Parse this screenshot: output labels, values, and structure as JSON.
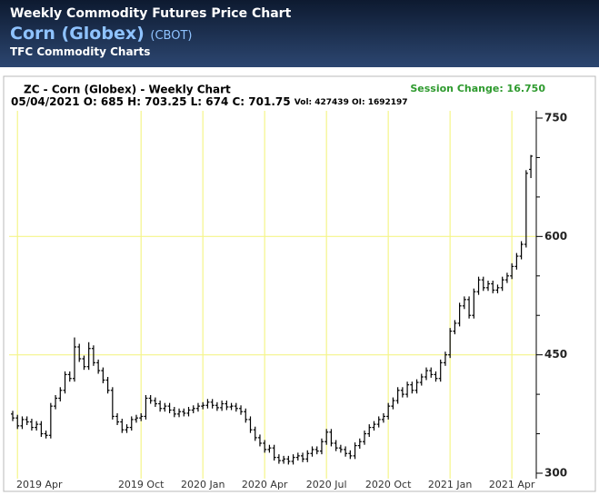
{
  "header": {
    "title": "Weekly Commodity Futures Price Chart",
    "commodity": "Corn (Globex)",
    "exchange": "(CBOT)",
    "source": "TFC Commodity Charts"
  },
  "chart_data": {
    "type": "ohlc",
    "title": "ZC - Corn (Globex) - Weekly Chart",
    "quote_line": "05/04/2021 O: 685 H: 703.25 L: 674 C: 701.75",
    "volume_line": "Vol: 427439 OI: 1692197",
    "session_change": "Session Change: 16.750",
    "color": "#000000",
    "grid_color": "#f5f58a",
    "ylim": [
      300,
      750
    ],
    "yticks": [
      300,
      450,
      600,
      750
    ],
    "yminorticks": [
      350,
      400,
      500,
      550,
      650,
      700
    ],
    "categories": [
      null,
      "2019 Apr",
      null,
      null,
      null,
      null,
      null,
      null,
      null,
      null,
      null,
      null,
      null,
      null,
      null,
      null,
      null,
      null,
      null,
      null,
      null,
      null,
      null,
      null,
      null,
      null,
      null,
      "2019 Oct",
      null,
      null,
      null,
      null,
      null,
      null,
      null,
      null,
      null,
      null,
      null,
      null,
      "2020 Jan",
      null,
      null,
      null,
      null,
      null,
      null,
      null,
      null,
      null,
      null,
      null,
      null,
      "2020 Apr",
      null,
      null,
      null,
      null,
      null,
      null,
      null,
      null,
      null,
      null,
      null,
      null,
      "2020 Jul",
      null,
      null,
      null,
      null,
      null,
      null,
      null,
      null,
      null,
      null,
      null,
      null,
      "2020 Oct",
      null,
      null,
      null,
      null,
      null,
      null,
      null,
      null,
      null,
      null,
      null,
      null,
      "2021 Jan",
      null,
      null,
      null,
      null,
      null,
      null,
      null,
      null,
      null,
      null,
      null,
      null,
      "2021 Apr",
      null,
      null,
      null,
      null
    ],
    "open": [
      375,
      370,
      360,
      368,
      365,
      358,
      362,
      350,
      348,
      385,
      395,
      405,
      425,
      420,
      460,
      445,
      435,
      458,
      440,
      430,
      418,
      405,
      372,
      365,
      355,
      358,
      368,
      370,
      372,
      395,
      392,
      388,
      382,
      385,
      380,
      375,
      378,
      376,
      380,
      382,
      385,
      386,
      390,
      386,
      383,
      388,
      384,
      385,
      382,
      378,
      368,
      355,
      345,
      338,
      330,
      332,
      320,
      316,
      318,
      315,
      320,
      322,
      318,
      325,
      330,
      328,
      340,
      352,
      338,
      332,
      330,
      325,
      322,
      335,
      340,
      350,
      358,
      362,
      368,
      372,
      385,
      392,
      405,
      400,
      412,
      405,
      415,
      422,
      430,
      425,
      420,
      440,
      450,
      480,
      490,
      512,
      520,
      500,
      530,
      545,
      535,
      540,
      532,
      535,
      545,
      550,
      562,
      575,
      590,
      685
    ],
    "high": [
      379,
      374,
      372,
      372,
      369,
      366,
      366,
      354,
      389,
      399,
      409,
      429,
      429,
      472,
      464,
      449,
      466,
      462,
      444,
      434,
      422,
      409,
      376,
      369,
      362,
      372,
      374,
      376,
      399,
      399,
      396,
      392,
      389,
      389,
      384,
      382,
      382,
      384,
      386,
      389,
      390,
      394,
      394,
      390,
      392,
      392,
      389,
      389,
      386,
      382,
      372,
      359,
      349,
      342,
      336,
      336,
      324,
      322,
      322,
      324,
      326,
      326,
      329,
      334,
      334,
      344,
      356,
      356,
      342,
      336,
      334,
      329,
      339,
      344,
      354,
      362,
      366,
      372,
      376,
      389,
      396,
      409,
      409,
      416,
      416,
      419,
      426,
      434,
      434,
      429,
      444,
      454,
      484,
      494,
      516,
      524,
      524,
      534,
      549,
      549,
      544,
      544,
      539,
      549,
      554,
      566,
      579,
      594,
      684,
      703.25
    ],
    "low": [
      366,
      356,
      356,
      361,
      354,
      354,
      346,
      344,
      344,
      381,
      391,
      401,
      416,
      416,
      441,
      431,
      431,
      436,
      426,
      414,
      401,
      368,
      361,
      351,
      351,
      354,
      364,
      366,
      368,
      388,
      384,
      378,
      378,
      376,
      371,
      371,
      372,
      372,
      376,
      378,
      381,
      382,
      382,
      379,
      379,
      380,
      380,
      378,
      374,
      364,
      351,
      341,
      334,
      326,
      326,
      316,
      312,
      312,
      311,
      311,
      316,
      314,
      314,
      321,
      324,
      324,
      336,
      334,
      328,
      326,
      321,
      318,
      318,
      331,
      336,
      346,
      354,
      358,
      364,
      368,
      381,
      388,
      396,
      396,
      401,
      401,
      411,
      418,
      421,
      416,
      416,
      436,
      446,
      476,
      486,
      508,
      496,
      496,
      526,
      531,
      531,
      528,
      528,
      531,
      541,
      546,
      558,
      571,
      586,
      674
    ],
    "close": [
      370,
      360,
      368,
      365,
      358,
      362,
      350,
      348,
      385,
      395,
      405,
      425,
      420,
      460,
      445,
      435,
      458,
      440,
      430,
      418,
      405,
      372,
      365,
      355,
      358,
      368,
      370,
      372,
      395,
      392,
      388,
      382,
      385,
      380,
      375,
      378,
      376,
      380,
      382,
      385,
      386,
      390,
      386,
      383,
      388,
      384,
      385,
      382,
      378,
      368,
      355,
      345,
      338,
      330,
      332,
      320,
      316,
      318,
      315,
      320,
      322,
      318,
      325,
      330,
      328,
      340,
      352,
      338,
      332,
      330,
      325,
      322,
      335,
      340,
      350,
      358,
      362,
      368,
      372,
      385,
      392,
      405,
      400,
      412,
      405,
      415,
      422,
      430,
      425,
      420,
      440,
      450,
      480,
      490,
      512,
      520,
      500,
      530,
      545,
      535,
      540,
      532,
      535,
      545,
      550,
      562,
      575,
      590,
      680,
      701.75
    ]
  }
}
